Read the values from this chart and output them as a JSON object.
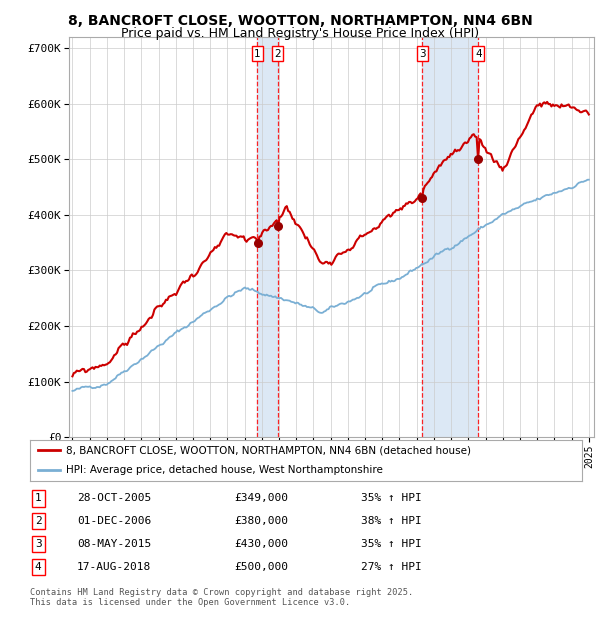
{
  "title": "8, BANCROFT CLOSE, WOOTTON, NORTHAMPTON, NN4 6BN",
  "subtitle": "Price paid vs. HM Land Registry's House Price Index (HPI)",
  "ylim": [
    0,
    720000
  ],
  "yticks": [
    0,
    100000,
    200000,
    300000,
    400000,
    500000,
    600000,
    700000
  ],
  "ytick_labels": [
    "£0",
    "£100K",
    "£200K",
    "£300K",
    "£400K",
    "£500K",
    "£600K",
    "£700K"
  ],
  "red_line_color": "#cc0000",
  "blue_line_color": "#7aafd4",
  "shade_color": "#dce8f5",
  "grid_color": "#cccccc",
  "bg_color": "#ffffff",
  "transaction_dates": [
    "28-OCT-2005",
    "01-DEC-2006",
    "08-MAY-2015",
    "17-AUG-2018"
  ],
  "transaction_prices": [
    349000,
    380000,
    430000,
    500000
  ],
  "transaction_hpi_pct": [
    "35%",
    "38%",
    "35%",
    "27%"
  ],
  "legend_label_red": "8, BANCROFT CLOSE, WOOTTON, NORTHAMPTON, NN4 6BN (detached house)",
  "legend_label_blue": "HPI: Average price, detached house, West Northamptonshire",
  "footnote": "Contains HM Land Registry data © Crown copyright and database right 2025.\nThis data is licensed under the Open Government Licence v3.0.",
  "title_fontsize": 10,
  "subtitle_fontsize": 9,
  "start_year": 1995,
  "end_year": 2025
}
